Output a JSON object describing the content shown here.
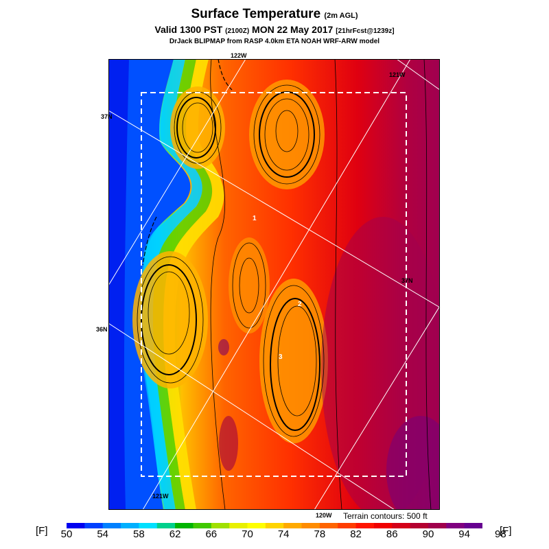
{
  "header": {
    "title": "Surface Temperature",
    "title_suffix": "(2m AGL)",
    "valid_prefix": "Valid 1300 PST",
    "valid_zulu": "(2100Z)",
    "valid_date": "MON 22 May 2017",
    "forecast": "[21hrFcst@1239z]",
    "source": "DrJack BLIPMAP from RASP 4.0km ETA NOAH WRF-ARW model"
  },
  "map": {
    "lon_labels": [
      "122W",
      "121W",
      "121W",
      "120W"
    ],
    "lat_labels": [
      "37N",
      "37N",
      "36N"
    ],
    "site_markers": [
      "1",
      "2",
      "3"
    ],
    "terrain_note": "Terrain contours: 500 ft"
  },
  "colorbar": {
    "unit_left": "[F]",
    "unit_right": "[F]",
    "ticks": [
      "50",
      "54",
      "58",
      "62",
      "66",
      "70",
      "74",
      "78",
      "82",
      "86",
      "90",
      "94",
      "98"
    ],
    "colors": [
      "#0000f0",
      "#0040ff",
      "#0080ff",
      "#00b0ff",
      "#00e0ff",
      "#00d08c",
      "#00b400",
      "#40c800",
      "#a0e000",
      "#e8f000",
      "#ffff00",
      "#ffd400",
      "#ffaa00",
      "#ff8c00",
      "#ff6400",
      "#ff3c00",
      "#ff1400",
      "#f00000",
      "#d40018",
      "#b40030",
      "#a0004c",
      "#800080",
      "#660090"
    ]
  }
}
